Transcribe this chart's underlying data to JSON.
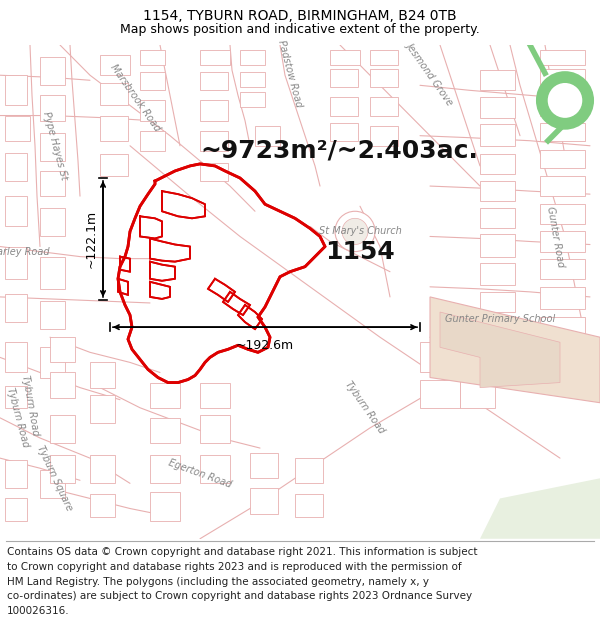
{
  "title": "1154, TYBURN ROAD, BIRMINGHAM, B24 0TB",
  "subtitle": "Map shows position and indicative extent of the property.",
  "area_text": "~9723m²/~2.403ac.",
  "property_number": "1154",
  "dim_width": "~192.6m",
  "dim_height": "~122.1m",
  "footer_lines": [
    "Contains OS data © Crown copyright and database right 2021. This information is subject",
    "to Crown copyright and database rights 2023 and is reproduced with the permission of",
    "HM Land Registry. The polygons (including the associated geometry, namely x, y",
    "co-ordinates) are subject to Crown copyright and database rights 2023 Ordnance Survey",
    "100026316."
  ],
  "map_bg": "#ffffff",
  "road_outline": "#e8b0b0",
  "building_edge": "#d08080",
  "highlight_color": "#dd0000",
  "green_color": "#80cc80",
  "green_inner": "#ffffff",
  "school_fill": "#f0e0d0",
  "dark_label": "#333333",
  "area_fontsize": 18,
  "number_fontsize": 18,
  "dim_fontsize": 9,
  "label_fontsize": 7,
  "title_fontsize": 10,
  "subtitle_fontsize": 9,
  "footer_fontsize": 7.5
}
